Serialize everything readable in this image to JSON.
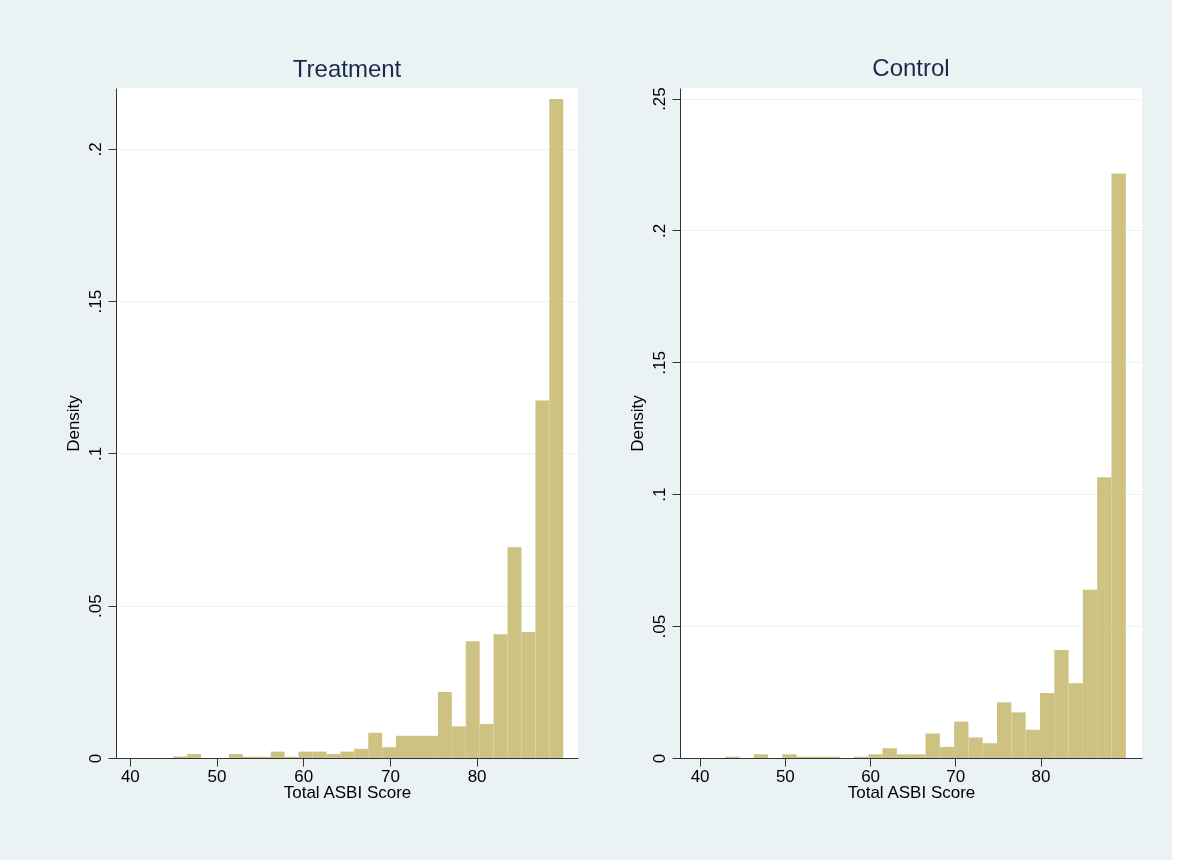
{
  "chart_data": [
    {
      "type": "histogram",
      "title": "Treatment",
      "xlabel": "Total ASBI Score",
      "ylabel": "Density",
      "color": "#cdc281",
      "bins": [
        45,
        46.61,
        48.21,
        49.82,
        51.43,
        53.04,
        54.64,
        56.25,
        57.86,
        59.46,
        61.07,
        62.68,
        64.29,
        65.89,
        67.5,
        69.11,
        70.71,
        72.32,
        73.93,
        75.54,
        77.14,
        78.75,
        80.36,
        81.96,
        83.57,
        85.18,
        86.79,
        88.39,
        90
      ],
      "values": [
        0.0005,
        0.0013,
        0,
        0,
        0.0013,
        0.0004,
        0.0004,
        0.0021,
        0.0004,
        0.0021,
        0.0021,
        0.0013,
        0.0021,
        0.003,
        0.0083,
        0.0035,
        0.0073,
        0.0073,
        0.0073,
        0.0217,
        0.0104,
        0.0383,
        0.0112,
        0.0406,
        0.0692,
        0.0414,
        0.1174,
        0.2164
      ],
      "xlim": [
        38.4,
        91.7
      ],
      "ylim": [
        0,
        0.22
      ],
      "xticks": [
        40,
        50,
        60,
        70,
        80
      ],
      "yticks": [
        {
          "value": 0,
          "label": "0"
        },
        {
          "value": 0.05,
          "label": ".05"
        },
        {
          "value": 0.1,
          "label": ".1"
        },
        {
          "value": 0.15,
          "label": ".15"
        },
        {
          "value": 0.2,
          "label": ".2"
        }
      ],
      "grid": "y"
    },
    {
      "type": "histogram",
      "title": "Control",
      "xlabel": "Total ASBI Score",
      "ylabel": "Density",
      "color": "#cdc281",
      "bins": [
        43,
        44.68,
        46.36,
        48.04,
        49.71,
        51.39,
        53.07,
        54.75,
        56.43,
        58.11,
        59.79,
        61.46,
        63.14,
        64.82,
        66.5,
        68.18,
        69.86,
        71.54,
        73.21,
        74.89,
        76.57,
        78.25,
        79.93,
        81.61,
        83.29,
        84.96,
        86.64,
        88.32,
        90
      ],
      "values": [
        0.0005,
        0,
        0.0014,
        0,
        0.0014,
        0.0005,
        0.0005,
        0.0005,
        0,
        0.0005,
        0.0014,
        0.0037,
        0.0014,
        0.0014,
        0.0093,
        0.0042,
        0.0138,
        0.0078,
        0.0056,
        0.0211,
        0.0173,
        0.0107,
        0.0246,
        0.0409,
        0.0283,
        0.0638,
        0.1064,
        0.2216
      ],
      "xlim": [
        37.7,
        91.9
      ],
      "ylim": [
        0,
        0.254
      ],
      "xticks": [
        40,
        50,
        60,
        70,
        80
      ],
      "yticks": [
        {
          "value": 0,
          "label": "0"
        },
        {
          "value": 0.05,
          "label": ".05"
        },
        {
          "value": 0.1,
          "label": ".1"
        },
        {
          "value": 0.15,
          "label": ".15"
        },
        {
          "value": 0.2,
          "label": ".2"
        },
        {
          "value": 0.25,
          "label": ".25"
        }
      ],
      "grid": "y"
    }
  ]
}
